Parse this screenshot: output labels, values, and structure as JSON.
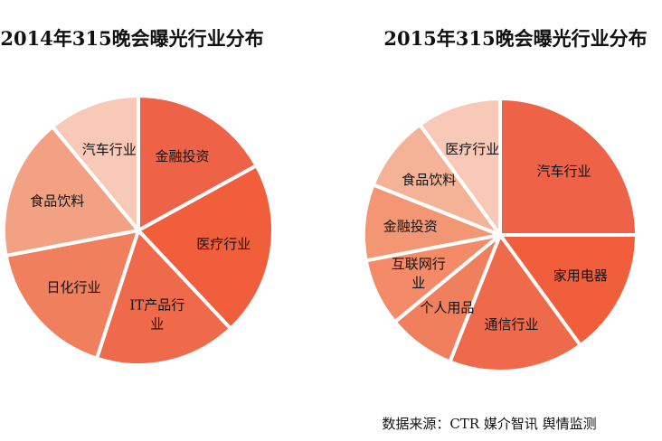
{
  "chart_data": [
    {
      "type": "pie",
      "title": "2014年315晚会曝光行业分布",
      "slices": [
        {
          "label": "金融投资",
          "value": 17,
          "color": "#EE6347",
          "exploded": false
        },
        {
          "label": "医疗行业",
          "value": 21,
          "color": "#F15E3B",
          "exploded": false
        },
        {
          "label": "IT产品行业",
          "value": 17,
          "color": "#EF6A4A",
          "exploded": false
        },
        {
          "label": "日化行业",
          "value": 17,
          "color": "#F07F5E",
          "exploded": false
        },
        {
          "label": "食品饮料",
          "value": 17,
          "color": "#F2A282",
          "exploded": false
        },
        {
          "label": "汽车行业",
          "value": 11,
          "color": "#F7C9B6",
          "exploded": false
        }
      ]
    },
    {
      "type": "pie",
      "title": "2015年315晚会曝光行业分布",
      "slices": [
        {
          "label": "汽车行业",
          "value": 25,
          "color": "#EE6347",
          "exploded": false
        },
        {
          "label": "家用电器",
          "value": 15,
          "color": "#F15E3B",
          "exploded": false
        },
        {
          "label": "通信行业",
          "value": 16,
          "color": "#EF6A4A",
          "exploded": false
        },
        {
          "label": "个人用品",
          "value": 8,
          "color": "#F07F5E",
          "exploded": false
        },
        {
          "label": "互联网行业",
          "value": 8,
          "color": "#F48A68",
          "exploded": false
        },
        {
          "label": "金融投资",
          "value": 9,
          "color": "#F29674",
          "exploded": false
        },
        {
          "label": "食品饮料",
          "value": 9,
          "color": "#F4B396",
          "exploded": false
        },
        {
          "label": "医疗行业",
          "value": 10,
          "color": "#F7C9B6",
          "exploded": false
        }
      ]
    }
  ],
  "source_note": "数据来源：CTR 媒介智讯 舆情监测"
}
